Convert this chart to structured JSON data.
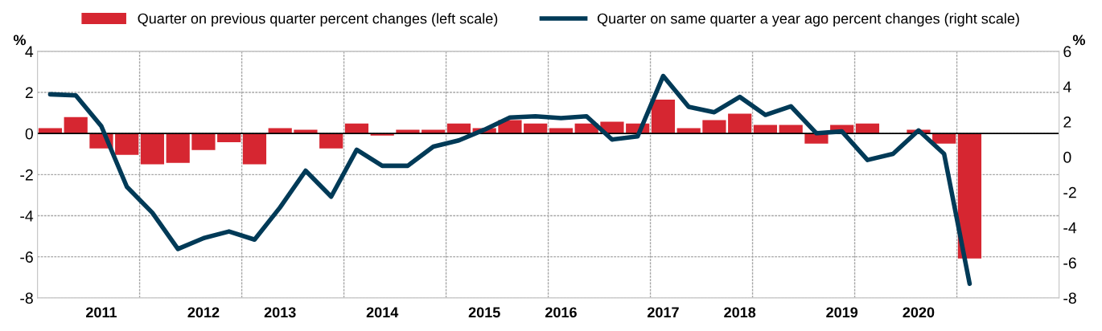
{
  "chart_data": {
    "type": "bar",
    "categories": [
      null,
      null,
      "2011",
      null,
      null,
      null,
      "2012",
      null,
      null,
      "2013",
      null,
      null,
      null,
      "2014",
      null,
      null,
      null,
      "2015",
      null,
      null,
      "2016",
      null,
      null,
      null,
      "2017",
      null,
      null,
      "2018",
      null,
      null,
      null,
      "2019",
      null,
      null,
      "2020",
      null,
      null,
      null,
      null,
      null
    ],
    "series": [
      {
        "name": "Quarter on previous quarter percent changes (left scale)",
        "color": "#d62631",
        "values": [
          0.26,
          0.8,
          -0.73,
          -1.04,
          -1.5,
          -1.43,
          -0.8,
          -0.42,
          -1.5,
          0.26,
          0.18,
          -0.73,
          0.49,
          -0.1,
          0.18,
          0.18,
          0.49,
          0.26,
          0.65,
          0.49,
          0.26,
          0.49,
          0.57,
          0.49,
          1.65,
          0.26,
          0.65,
          0.96,
          0.42,
          0.42,
          -0.49,
          0.42,
          0.49,
          0,
          0.18,
          -0.49,
          -6.08,
          null,
          null,
          null
        ]
      },
      {
        "name": "Quarter on same quarter a year ago percent changes (right scale)",
        "type": "line",
        "axis": "y2",
        "color": "#003a57",
        "values": [
          3.56,
          3.5,
          1.75,
          -1.69,
          -3.17,
          -5.22,
          -4.61,
          -4.23,
          -4.69,
          -2.86,
          -0.78,
          -2.25,
          0.41,
          -0.5,
          -0.5,
          0.59,
          0.94,
          1.55,
          2.24,
          2.31,
          2.21,
          2.31,
          0.99,
          1.17,
          4.6,
          2.85,
          2.54,
          3.41,
          2.39,
          2.88,
          1.35,
          1.45,
          -0.17,
          0.18,
          1.51,
          0.18,
          -7.2,
          null,
          null,
          null
        ]
      }
    ],
    "ylabel": "%",
    "y2label": "%",
    "ylim": [
      -8,
      4
    ],
    "yticks": [
      -8,
      -6,
      -4,
      -2,
      0,
      2,
      4
    ],
    "y2lim": [
      -8,
      6
    ],
    "y2ticks": [
      -8,
      -6,
      -4,
      -2,
      0,
      2,
      4,
      6
    ],
    "ref_lines": [
      {
        "axis": "y",
        "value": 0,
        "color": "#000000"
      }
    ],
    "grid": true,
    "legend": "top",
    "marker": "none",
    "line_style": "solid"
  }
}
